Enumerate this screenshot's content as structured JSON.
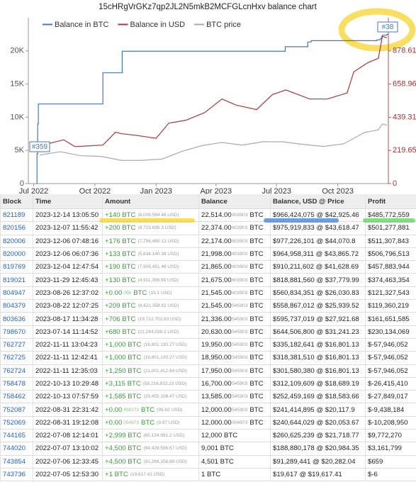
{
  "chart_data": {
    "type": "line",
    "title": "15cHRgVrGKz7qp2JL2N5mkB2MCFGLcnHxv balance chart",
    "xlim": [
      "2022-06-23",
      "2023-12-16"
    ],
    "xticks": [
      {
        "value": "2022-07-01",
        "label": "Jul 2022"
      },
      {
        "value": "2022-10-01",
        "label": "Oct 2022"
      },
      {
        "value": "2023-01-01",
        "label": "Jan 2023"
      },
      {
        "value": "2023-04-01",
        "label": "Apr 2023"
      },
      {
        "value": "2023-07-01",
        "label": "Jul 2023"
      },
      {
        "value": "2023-10-01",
        "label": "Oct 2023"
      }
    ],
    "ylim": [
      0,
      25000
    ],
    "yticks": [
      0,
      {
        "value": 5000,
        "label": "5K"
      },
      {
        "value": 10000,
        "label": "10K"
      },
      {
        "value": 15000,
        "label": "15K"
      },
      {
        "value": 20000,
        "label": "20K"
      }
    ],
    "y2lim": [
      0,
      1098.25
    ],
    "y2ticks": [
      0,
      219.65,
      439.31,
      658.96,
      878.61
    ],
    "annotations": [
      "#359",
      "#38"
    ],
    "series": [
      {
        "name": "Balance in BTC",
        "color": "#4a78b5",
        "step": true,
        "x": [
          "2022-07-05",
          "2022-07-06",
          "2022-07-07",
          "2022-07-08",
          "2022-08-31",
          "2022-10-13",
          "2022-10-13",
          "2022-11-11",
          "2022-11-11",
          "2022-11-11",
          "2023-07-14",
          "2023-08-17",
          "2023-08-22",
          "2023-11-29",
          "2023-12-04",
          "2023-12-06",
          "2023-12-06",
          "2023-12-07",
          "2023-12-14"
        ],
        "values": [
          1,
          4501,
          9001,
          12000,
          12000,
          13585,
          16700,
          17950,
          18950,
          19950,
          20630,
          21336,
          21545,
          21675,
          21865,
          21998,
          22174,
          22374,
          22514
        ]
      },
      {
        "name": "Balance in USD",
        "color": "#a33a3a",
        "axis": "y2",
        "x": [
          "2022-07-10",
          "2022-08-15",
          "2022-09-01",
          "2022-10-13",
          "2022-11-01",
          "2022-11-11",
          "2022-12-01",
          "2023-01-01",
          "2023-01-20",
          "2023-02-15",
          "2023-03-15",
          "2023-04-10",
          "2023-05-01",
          "2023-06-01",
          "2023-06-25",
          "2023-07-15",
          "2023-08-20",
          "2023-09-15",
          "2023-10-15",
          "2023-10-25",
          "2023-11-15",
          "2023-12-01",
          "2023-12-07",
          "2023-12-14"
        ],
        "values": [
          250,
          290,
          245,
          255,
          340,
          330,
          320,
          300,
          400,
          420,
          470,
          560,
          520,
          490,
          590,
          620,
          560,
          560,
          600,
          740,
          800,
          830,
          975,
          966
        ]
      },
      {
        "name": "BTC price",
        "color": "#aaaaaa",
        "x": [
          "2022-07-10",
          "2022-08-10",
          "2022-09-10",
          "2022-10-10",
          "2022-11-10",
          "2022-12-10",
          "2023-01-10",
          "2023-02-10",
          "2023-03-10",
          "2023-04-10",
          "2023-05-10",
          "2023-06-10",
          "2023-07-10",
          "2023-08-10",
          "2023-09-10",
          "2023-10-10",
          "2023-11-10",
          "2023-12-01",
          "2023-12-07",
          "2023-12-14"
        ],
        "values": [
          4300,
          4800,
          4200,
          4100,
          3500,
          3500,
          3700,
          4900,
          5700,
          6200,
          5800,
          6300,
          6300,
          5900,
          5600,
          6000,
          7700,
          8100,
          9000,
          8800
        ]
      }
    ]
  },
  "table": {
    "headers": [
      "Block",
      "Time",
      "Amount",
      "Balance",
      "Balance, USD @ Price",
      "Profit"
    ],
    "rows": [
      {
        "block": "821189",
        "time": "2023-12-14 13:05:50",
        "amount": "+140 BTC",
        "amount_usd": "(6,009,564.46 USD)",
        "balance": "22,514.00",
        "balance_dust": "603903",
        "balance_unit": "BTC",
        "usd": "$966,424,075 @ $42,925.46",
        "profit": "$485,772,559"
      },
      {
        "block": "820156",
        "time": "2023-12-07 11:55:42",
        "amount": "+200 BTC",
        "amount_usd": "(8,723,695.3 USD)",
        "balance": "22,374.00",
        "balance_dust": "603903",
        "balance_unit": "BTC",
        "usd": "$975,919,833 @ $43,618.47",
        "profit": "$501,277,881"
      },
      {
        "block": "820006",
        "time": "2023-12-06 07:48:16",
        "amount": "+176 BTC",
        "amount_usd": "(7,756,460.13 USD)",
        "balance": "22,174.00",
        "balance_dust": "603903",
        "balance_unit": "BTC",
        "usd": "$977,226,101 @ $44,070.8",
        "profit": "$511,307,843"
      },
      {
        "block": "820000",
        "time": "2023-12-06 06:07:36",
        "amount": "+133 BTC",
        "amount_usd": "(5,834,140.38 USD)",
        "balance": "21,998.00",
        "balance_dust": "603903",
        "balance_unit": "BTC",
        "usd": "$964,958,311 @ $43,865.72",
        "profit": "$506,796,513"
      },
      {
        "block": "819769",
        "time": "2023-12-04 12:47:54",
        "amount": "+190 BTC",
        "amount_usd": "(7,909,451.48 USD)",
        "balance": "21,865.00",
        "balance_dust": "603903",
        "balance_unit": "BTC",
        "usd": "$910,211,602 @ $41,628.69",
        "profit": "$457,883,944"
      },
      {
        "block": "819021",
        "time": "2023-11-29 12:45:43",
        "amount": "+130 BTC",
        "amount_usd": "(4,911,398.99 USD)",
        "balance": "21,675.00",
        "balance_dust": "603903",
        "balance_unit": "BTC",
        "usd": "$818,881,560 @ $37,779.99",
        "profit": "$374,463,354"
      },
      {
        "block": "804947",
        "time": "2023-08-26 12:37:02",
        "amount": "+0.00",
        "amount_dust": "056",
        "amount_unit": "BTC",
        "amount_usd": "(15.1 USD)",
        "balance": "21,545.00",
        "balance_dust": "603903",
        "balance_unit": "BTC",
        "usd": "$560,834,351 @ $26,030.83",
        "profit": "$121,327,543"
      },
      {
        "block": "804379",
        "time": "2023-08-22 12:07:25",
        "amount": "+209 BTC",
        "amount_usd": "(8,421,358.82 USD)",
        "balance": "21,545.00",
        "balance_dust": "545903",
        "balance_unit": "BTC",
        "usd": "$558,867,012 @ $25,939.52",
        "profit": "$119,360,219"
      },
      {
        "block": "803636",
        "time": "2023-08-17 11:34:28",
        "amount": "+706 BTC",
        "amount_usd": "(19,712,702.83 USD)",
        "balance": "21,336.00",
        "balance_dust": "545903",
        "balance_unit": "BTC",
        "usd": "$595,737,019 @ $27,921.68",
        "profit": "$161,651,585"
      },
      {
        "block": "798670",
        "time": "2023-07-14 11:14:52",
        "amount": "+680 BTC",
        "amount_usd": "(21,244,038.2 USD)",
        "balance": "20,630.00",
        "balance_dust": "545903",
        "balance_unit": "BTC",
        "usd": "$644,506,800 @ $31,241.23",
        "profit": "$230,134,069"
      },
      {
        "block": "762727",
        "time": "2022-11-11 13:04:23",
        "amount": "+1,000 BTC",
        "amount_usd": "(16,801,130.27 USD)",
        "balance": "19,950.00",
        "balance_dust": "545903",
        "balance_unit": "BTC",
        "usd": "$335,182,641 @ $16,801.13",
        "profit": "$-57,946,052"
      },
      {
        "block": "762725",
        "time": "2022-11-11 12:42:41",
        "amount": "+1,000 BTC",
        "amount_usd": "(16,801,130.27 USD)",
        "balance": "18,950.00",
        "balance_dust": "545903",
        "balance_unit": "BTC",
        "usd": "$318,381,510 @ $16,801.13",
        "profit": "$-57,946,052"
      },
      {
        "block": "762724",
        "time": "2022-11-11 12:35:03",
        "amount": "+1,250 BTC",
        "amount_usd": "(21,001,412.84 USD)",
        "balance": "17,950.00",
        "balance_dust": "545903",
        "balance_unit": "BTC",
        "usd": "$301,580,380 @ $16,801.13",
        "profit": "$-57,946,052"
      },
      {
        "block": "758478",
        "time": "2022-10-13 10:29:48",
        "amount": "+3,115 BTC",
        "amount_usd": "(58,216,833.23 USD)",
        "balance": "16,700.00",
        "balance_dust": "545903",
        "balance_unit": "BTC",
        "usd": "$312,109,609 @ $18,689.19",
        "profit": "$-26,415,410"
      },
      {
        "block": "758462",
        "time": "2022-10-13 07:57:59",
        "amount": "+1,585 BTC",
        "amount_usd": "(29,455,108.47 USD)",
        "balance": "13,585.00",
        "balance_dust": "545903",
        "balance_unit": "BTC",
        "usd": "$252,459,169 @ $18,583.66",
        "profit": "$-27,849,017"
      },
      {
        "block": "752087",
        "time": "2022-08-31 22:31:42",
        "amount": "+0.00",
        "amount_dust": "496173",
        "amount_unit": "BTC",
        "amount_usd": "(99.82 USD)",
        "balance": "12,000.00",
        "balance_dust": "545903",
        "balance_unit": "BTC",
        "usd": "$241,414,895 @ $20,117.9",
        "profit": "$-9,438,184"
      },
      {
        "block": "752069",
        "time": "2022-08-31 19:12:08",
        "amount": "+0.00",
        "amount_dust": "054973",
        "amount_unit": "BTC",
        "amount_usd": "(9.97 USD)",
        "balance": "12,000.00",
        "balance_dust": "004973",
        "balance_unit": "BTC",
        "usd": "$240,644,029 @ $20,053.67",
        "profit": "$-10,208,950"
      },
      {
        "block": "744165",
        "time": "2022-07-08 12:14:01",
        "amount": "+2,999 BTC",
        "amount_usd": "(65,134,991.2 USD)",
        "balance": "12,000 BTC",
        "usd": "$260,625,239 @ $21,718.77",
        "profit": "$9,772,270"
      },
      {
        "block": "744020",
        "time": "2022-07-07 13:10:02",
        "amount": "+4,500 BTC",
        "amount_usd": "(94,429,596.67 USD)",
        "balance": "9,001 BTC",
        "usd": "$188,880,178 @ $20,984.35",
        "profit": "$3,161,799"
      },
      {
        "block": "743854",
        "time": "2022-07-06 12:33:45",
        "amount": "+4,500 BTC",
        "amount_usd": "(91,269,158.88 USD)",
        "balance": "4,501 BTC",
        "usd": "$91,289,441 @ $20,282.04",
        "profit": "$659"
      },
      {
        "block": "743736",
        "time": "2022-07-05 12:53:30",
        "amount": "+1 BTC",
        "amount_usd": "(19,617.41 USD)",
        "balance": "1 BTC",
        "usd": "$19,617 @ $19,617.41",
        "profit": "$-6"
      }
    ]
  }
}
